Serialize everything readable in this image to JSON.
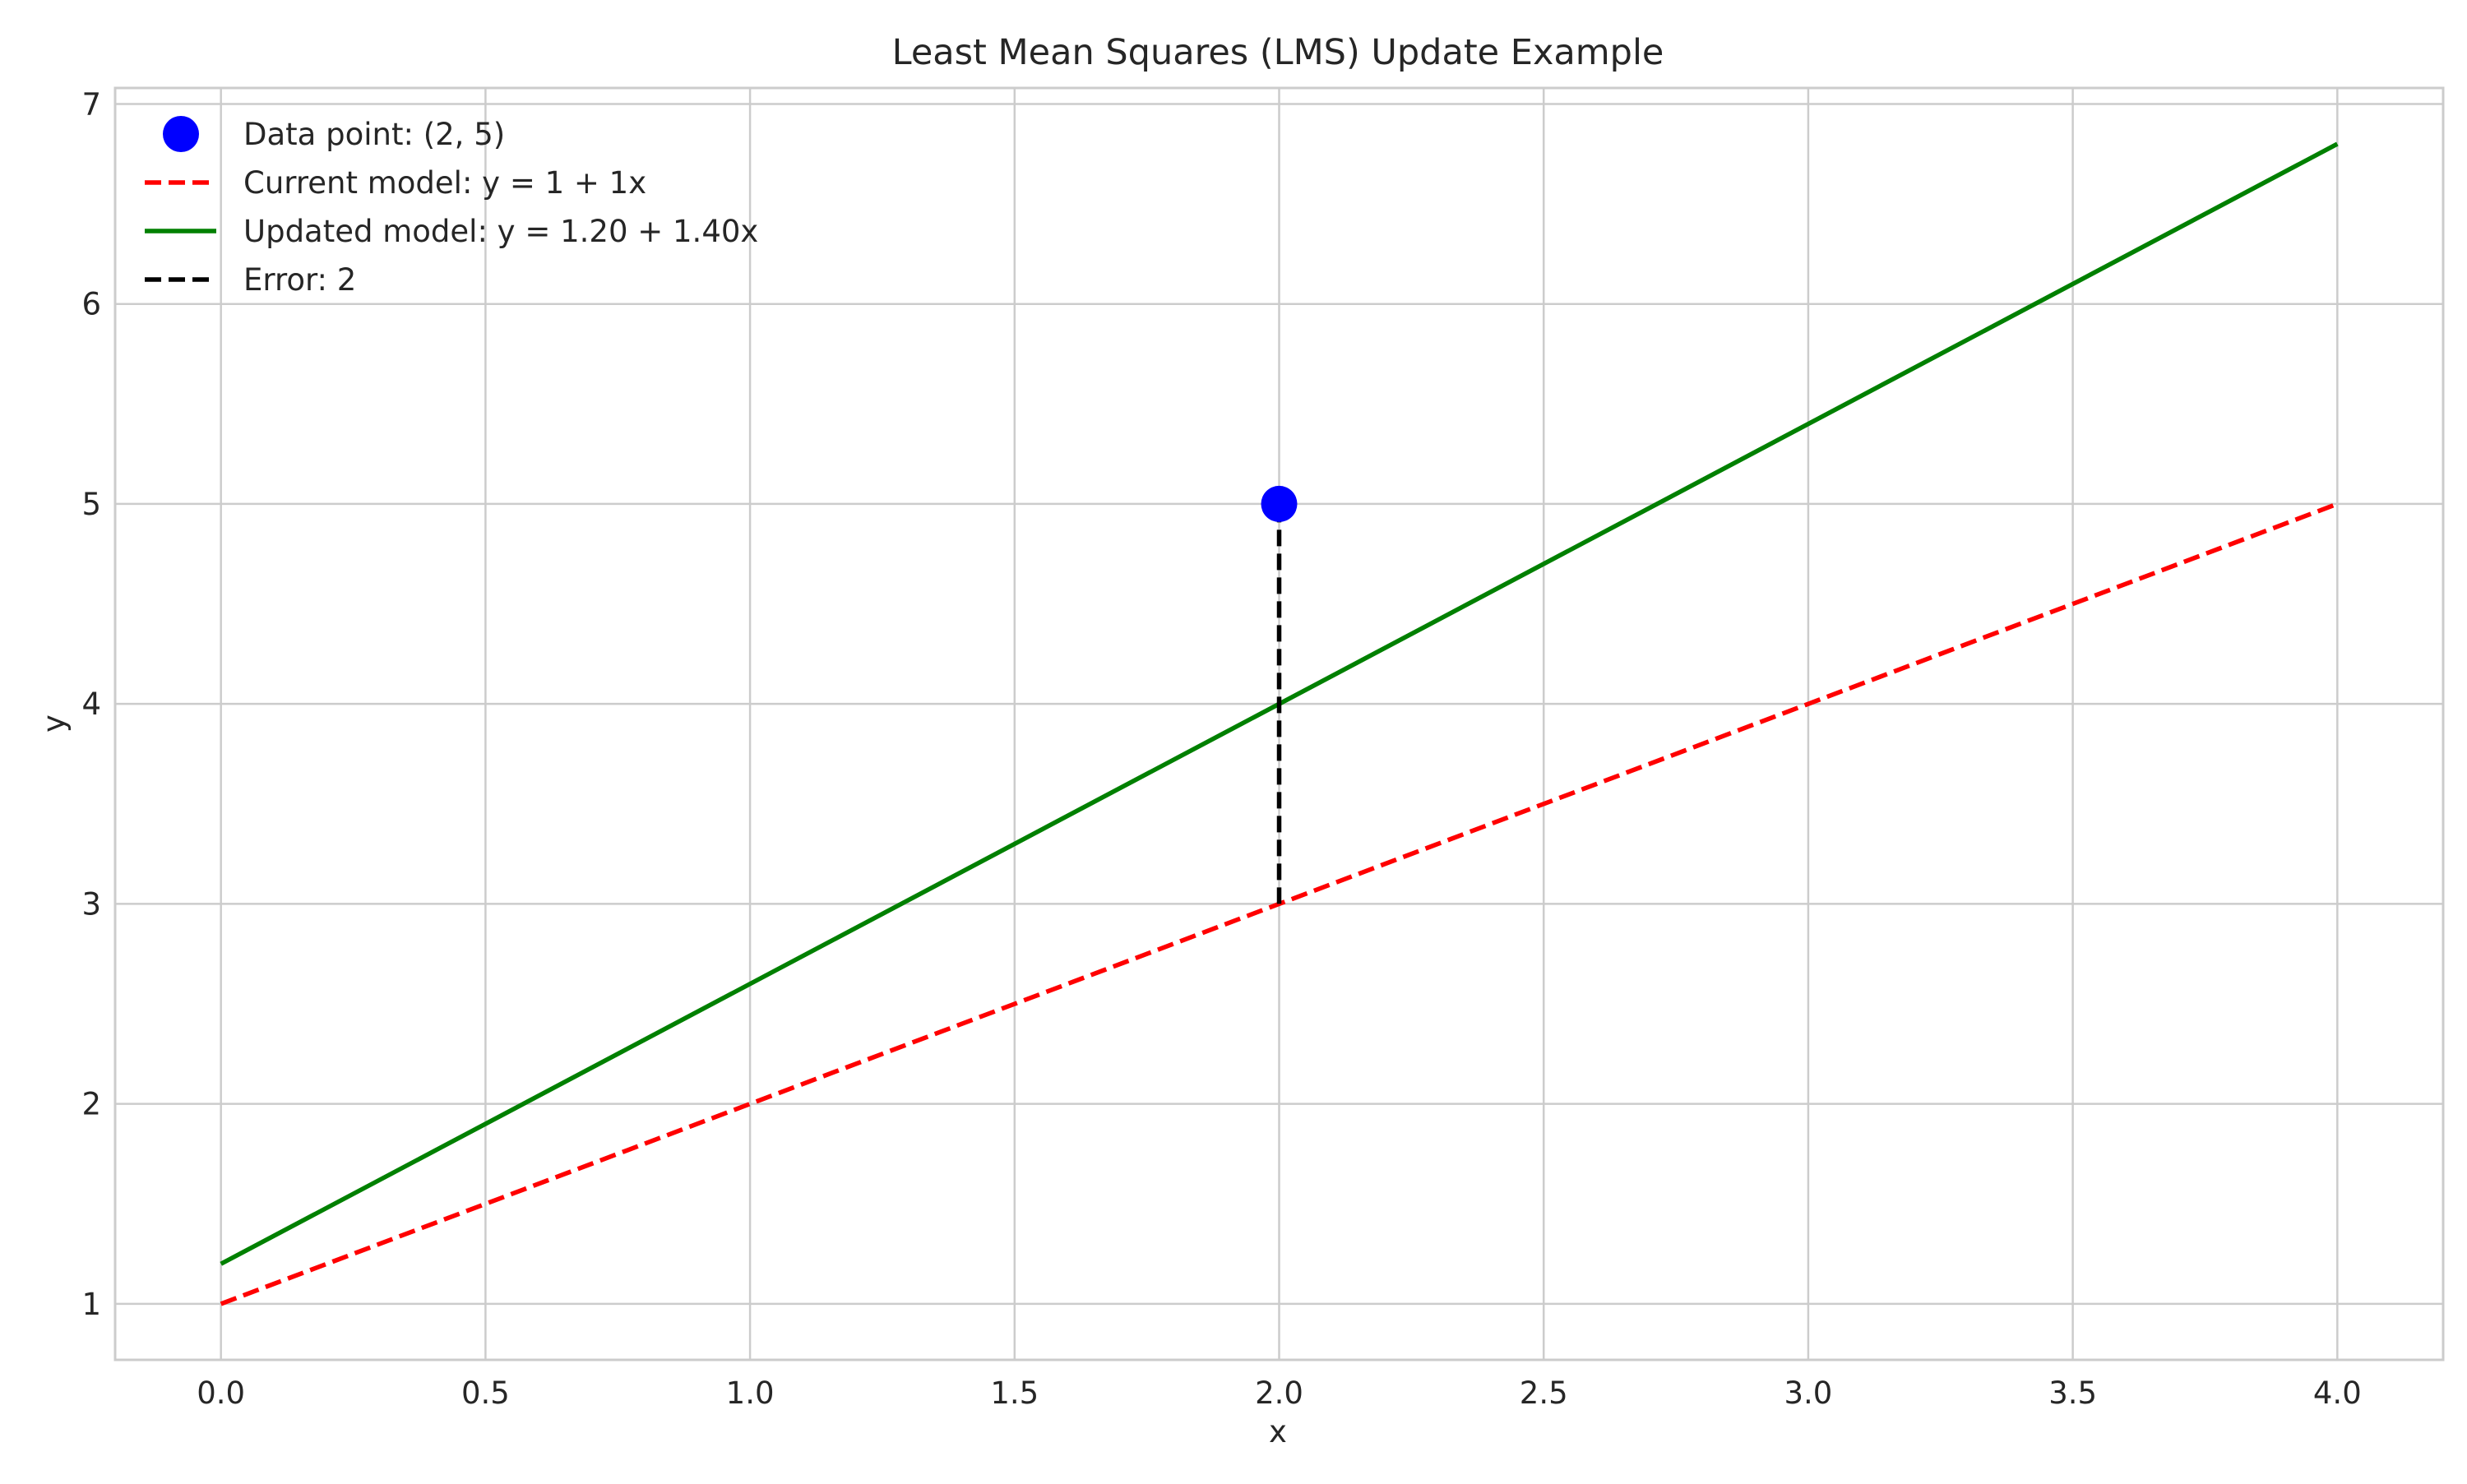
{
  "chart_data": {
    "type": "line",
    "title": "Least Mean Squares (LMS) Update Example",
    "xlabel": "x",
    "ylabel": "y",
    "xlim": [
      -0.2,
      4.2
    ],
    "ylim": [
      0.72,
      7.08
    ],
    "xticks": [
      "0.0",
      "0.5",
      "1.0",
      "1.5",
      "2.0",
      "2.5",
      "3.0",
      "3.5",
      "4.0"
    ],
    "yticks": [
      "1",
      "2",
      "3",
      "4",
      "5",
      "6",
      "7"
    ],
    "grid": true,
    "legend_position": "top-left",
    "series": [
      {
        "name": "Data point: (2, 5)",
        "kind": "scatter",
        "color": "#0000ff",
        "points": [
          [
            2,
            5
          ]
        ]
      },
      {
        "name": "Current model: y = 1 + 1x",
        "kind": "line",
        "style": "dashed",
        "color": "#ff0000",
        "points": [
          [
            0,
            1
          ],
          [
            4,
            5
          ]
        ]
      },
      {
        "name": "Updated model: y = 1.20 + 1.40x",
        "kind": "line",
        "style": "solid",
        "color": "#008000",
        "points": [
          [
            0,
            1.2
          ],
          [
            4,
            6.8
          ]
        ]
      },
      {
        "name": "Error: 2",
        "kind": "line",
        "style": "dashed",
        "color": "#000000",
        "points": [
          [
            2,
            3
          ],
          [
            2,
            5
          ]
        ]
      }
    ]
  }
}
